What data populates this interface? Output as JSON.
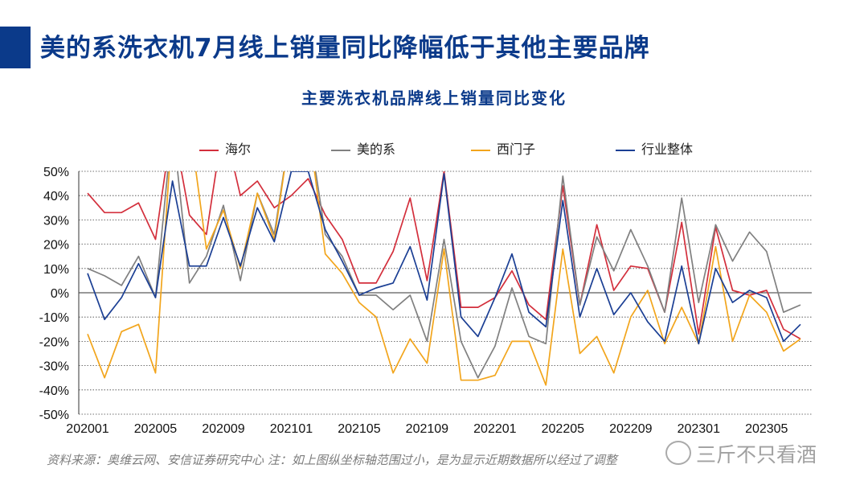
{
  "header": {
    "title": "美的系洗衣机7月线上销量同比降幅低于其他主要品牌"
  },
  "source": "资料来源：奥维云网、安信证券研究中心 注：如上图纵坐标轴范围过小，是为显示近期数据所以经过了调整",
  "watermark": "三斤不只看酒",
  "chart_data": {
    "type": "line",
    "title": "主要洗衣机品牌线上销量同比变化",
    "xlabel": "",
    "ylabel": "",
    "ylim": [
      -50,
      50
    ],
    "yticks": [
      "50%",
      "40%",
      "30%",
      "20%",
      "10%",
      "0%",
      "-10%",
      "-20%",
      "-30%",
      "-40%",
      "-50%"
    ],
    "x": [
      "202001",
      "202002",
      "202003",
      "202004",
      "202005",
      "202006",
      "202007",
      "202008",
      "202009",
      "202010",
      "202011",
      "202012",
      "202101",
      "202102",
      "202103",
      "202104",
      "202105",
      "202106",
      "202107",
      "202108",
      "202109",
      "202110",
      "202111",
      "202112",
      "202201",
      "202202",
      "202203",
      "202204",
      "202205",
      "202206",
      "202207",
      "202208",
      "202209",
      "202210",
      "202211",
      "202212",
      "202301",
      "202302",
      "202303",
      "202304",
      "202305",
      "202306",
      "202307"
    ],
    "xtick_labels": [
      "202001",
      "202005",
      "202009",
      "202101",
      "202105",
      "202109",
      "202201",
      "202205",
      "202209",
      "202301",
      "202305"
    ],
    "legend_position": "top",
    "grid": "horizontal-dotted",
    "series": [
      {
        "name": "海尔",
        "color": "#d32f3c",
        "values": [
          41,
          33,
          33,
          37,
          22,
          70,
          32,
          24,
          70,
          40,
          46,
          35,
          40,
          47,
          32,
          22,
          4,
          4,
          17,
          39,
          5,
          50,
          -6,
          -6,
          -2,
          9,
          -5,
          -11,
          44,
          -5,
          28,
          1,
          11,
          10,
          -8,
          29,
          -17,
          27,
          1,
          -1,
          1,
          -15,
          -19
        ]
      },
      {
        "name": "美的系",
        "color": "#808080",
        "values": [
          10,
          7,
          3,
          15,
          -2,
          70,
          4,
          15,
          36,
          5,
          41,
          24,
          70,
          70,
          24,
          15,
          -1,
          -1,
          -7,
          -1,
          -20,
          22,
          -20,
          -35,
          -22,
          2,
          -18,
          -21,
          48,
          -5,
          23,
          9,
          26,
          11,
          -8,
          39,
          -4,
          28,
          13,
          25,
          17,
          -8,
          -5
        ]
      },
      {
        "name": "西门子",
        "color": "#f2a51c",
        "values": [
          -17,
          -35,
          -16,
          -13,
          -33,
          70,
          70,
          18,
          34,
          10,
          41,
          22,
          70,
          70,
          16,
          8,
          -4,
          -10,
          -33,
          -19,
          -29,
          18,
          -36,
          -36,
          -34,
          -20,
          -20,
          -38,
          18,
          -25,
          -18,
          -33,
          -10,
          1,
          -21,
          -6,
          -21,
          19,
          -20,
          -1,
          -8,
          -24,
          -19
        ]
      },
      {
        "name": "行业整体",
        "color": "#1b3f94",
        "values": [
          8,
          -11,
          -2,
          12,
          -2,
          46,
          11,
          11,
          31,
          11,
          35,
          21,
          50,
          50,
          26,
          13,
          -1,
          2,
          4,
          19,
          -3,
          49,
          -10,
          -18,
          -2,
          16,
          -8,
          -14,
          38,
          -10,
          10,
          -9,
          0,
          -12,
          -20,
          11,
          -21,
          10,
          -4,
          1,
          -2,
          -20,
          -13
        ]
      }
    ]
  }
}
